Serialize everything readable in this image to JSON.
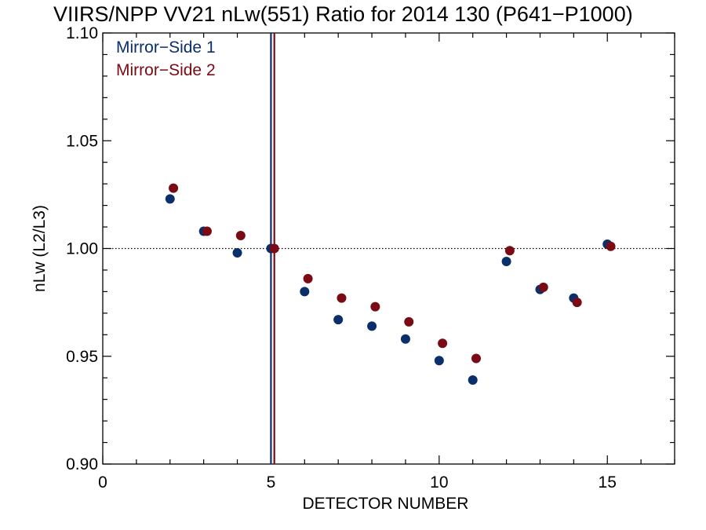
{
  "chart_data": {
    "type": "scatter",
    "title": "VIIRS/NPP VV21 nLw(551) Ratio for 2014 130 (P641−P1000)",
    "xlabel": "DETECTOR NUMBER",
    "ylabel": "nLw (L2/L3)",
    "xlim": [
      0,
      17
    ],
    "ylim": [
      0.9,
      1.1
    ],
    "x_ticks": [
      0,
      5,
      10,
      15
    ],
    "x_tick_labels": [
      "0",
      "5",
      "10",
      "15"
    ],
    "y_ticks": [
      0.9,
      0.95,
      1.0,
      1.05,
      1.1
    ],
    "y_tick_labels": [
      "0.90",
      "0.95",
      "1.00",
      "1.05",
      "1.10"
    ],
    "grid": false,
    "legend_position": "top-left",
    "reference_line": {
      "y": 1.0,
      "style": "dotted",
      "color": "#000000"
    },
    "vertical_lines": [
      {
        "x": 5.0,
        "color": "#0b2f6b"
      },
      {
        "x": 5.1,
        "color": "#7a0a14"
      }
    ],
    "series": [
      {
        "name": "Mirror−Side 1",
        "color": "#0b2f6b",
        "x": [
          2,
          3,
          4,
          5,
          6,
          7,
          8,
          9,
          10,
          11,
          12,
          13,
          14,
          15
        ],
        "y": [
          1.023,
          1.008,
          0.998,
          1.0,
          0.98,
          0.967,
          0.964,
          0.958,
          0.948,
          0.939,
          0.994,
          0.981,
          0.977,
          1.002
        ]
      },
      {
        "name": "Mirror−Side 2",
        "color": "#7a0a14",
        "x": [
          2.1,
          3.1,
          4.1,
          5.1,
          6.1,
          7.1,
          8.1,
          9.1,
          10.1,
          11.1,
          12.1,
          13.1,
          14.1,
          15.1
        ],
        "y": [
          1.028,
          1.008,
          1.006,
          1.0,
          0.986,
          0.977,
          0.973,
          0.966,
          0.956,
          0.949,
          0.999,
          0.982,
          0.975,
          1.001
        ]
      }
    ]
  }
}
